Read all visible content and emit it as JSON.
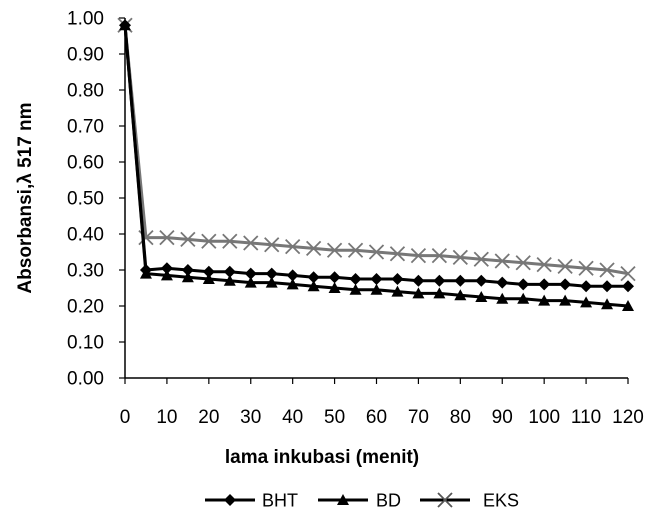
{
  "chart_data": {
    "type": "line",
    "title": "",
    "xlabel": "lama inkubasi (menit)",
    "ylabel": "Absorbansi,λ 517 nm",
    "xlim": [
      0,
      120
    ],
    "ylim": [
      0,
      1
    ],
    "x_ticks": [
      "0",
      "10",
      "20",
      "30",
      "40",
      "50",
      "60",
      "70",
      "80",
      "90",
      "100",
      "110",
      "120"
    ],
    "y_ticks": [
      "0.00",
      "0.10",
      "0.20",
      "0.30",
      "0.40",
      "0.50",
      "0.60",
      "0.70",
      "0.80",
      "0.90",
      "1.00"
    ],
    "grid": false,
    "legend_position": "bottom",
    "x": [
      0,
      5,
      10,
      15,
      20,
      25,
      30,
      35,
      40,
      45,
      50,
      55,
      60,
      65,
      70,
      75,
      80,
      85,
      90,
      95,
      100,
      105,
      110,
      115,
      120
    ],
    "series": [
      {
        "name": "BHT",
        "marker": "diamond",
        "color": "#000000",
        "values": [
          0.98,
          0.3,
          0.305,
          0.3,
          0.295,
          0.295,
          0.29,
          0.29,
          0.285,
          0.28,
          0.28,
          0.275,
          0.275,
          0.275,
          0.27,
          0.27,
          0.27,
          0.27,
          0.265,
          0.26,
          0.26,
          0.26,
          0.255,
          0.255,
          0.255
        ]
      },
      {
        "name": "BD",
        "marker": "triangle",
        "color": "#000000",
        "values": [
          0.98,
          0.29,
          0.285,
          0.28,
          0.275,
          0.27,
          0.265,
          0.265,
          0.26,
          0.255,
          0.25,
          0.245,
          0.245,
          0.24,
          0.235,
          0.235,
          0.23,
          0.225,
          0.22,
          0.22,
          0.215,
          0.215,
          0.21,
          0.205,
          0.2
        ]
      },
      {
        "name": "EKS",
        "marker": "x",
        "color": "#777777",
        "values": [
          0.98,
          0.39,
          0.39,
          0.385,
          0.38,
          0.38,
          0.375,
          0.37,
          0.365,
          0.36,
          0.355,
          0.355,
          0.35,
          0.345,
          0.34,
          0.34,
          0.335,
          0.33,
          0.325,
          0.32,
          0.315,
          0.31,
          0.305,
          0.3,
          0.29
        ]
      }
    ]
  }
}
